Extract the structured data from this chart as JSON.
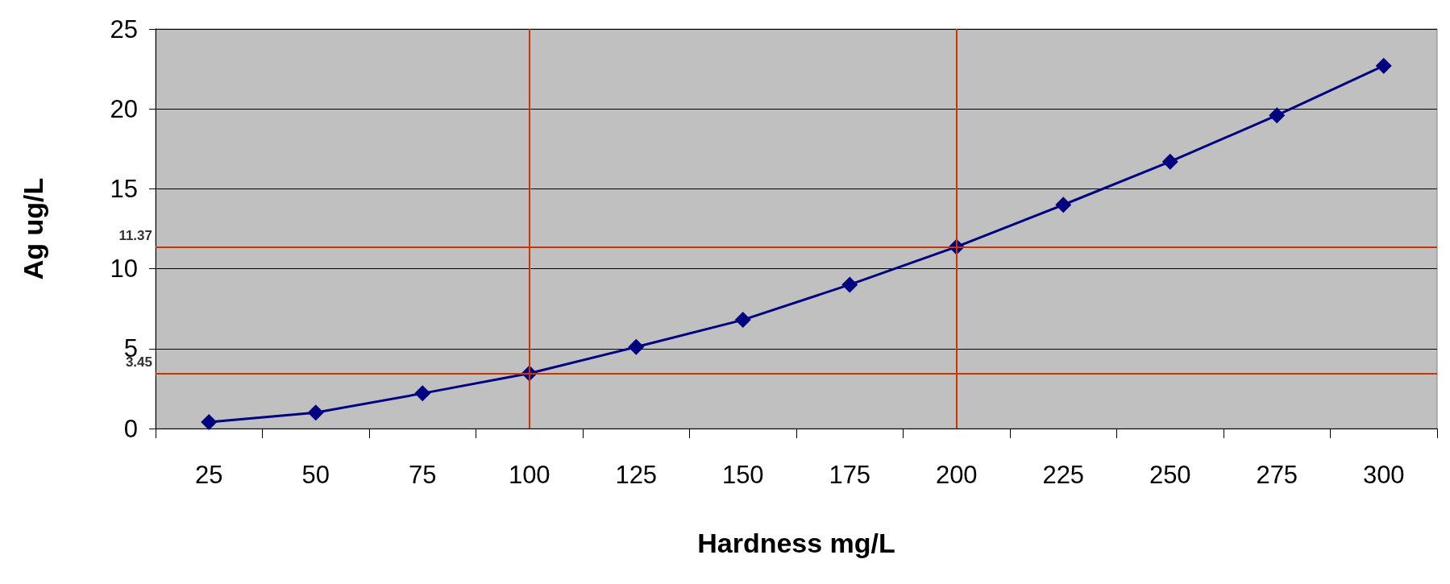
{
  "chart_data": {
    "type": "line",
    "xlabel": "Hardness mg/L",
    "ylabel": "Ag ug/L",
    "categories": [
      "25",
      "50",
      "75",
      "100",
      "125",
      "150",
      "175",
      "200",
      "225",
      "250",
      "275",
      "300"
    ],
    "series": [
      {
        "color": "#000080",
        "values": [
          0.4,
          1.0,
          2.2,
          3.45,
          5.1,
          6.8,
          9.0,
          11.37,
          14.0,
          16.7,
          19.6,
          22.7
        ]
      }
    ],
    "ylim": [
      0,
      25
    ],
    "yticks": [
      0,
      5,
      10,
      15,
      20,
      25
    ],
    "grid": "y",
    "marker": "diamond",
    "line_style": "solid",
    "ref_lines": [
      {
        "axis": "y",
        "value": 3.45,
        "label": "3.45",
        "color": "#cc3300"
      },
      {
        "axis": "y",
        "value": 11.37,
        "label": "11.37",
        "color": "#cc3300"
      },
      {
        "axis": "x",
        "value": "100",
        "label": null,
        "color": "#cc3300"
      },
      {
        "axis": "x",
        "value": "200",
        "label": null,
        "color": "#cc3300"
      }
    ]
  }
}
